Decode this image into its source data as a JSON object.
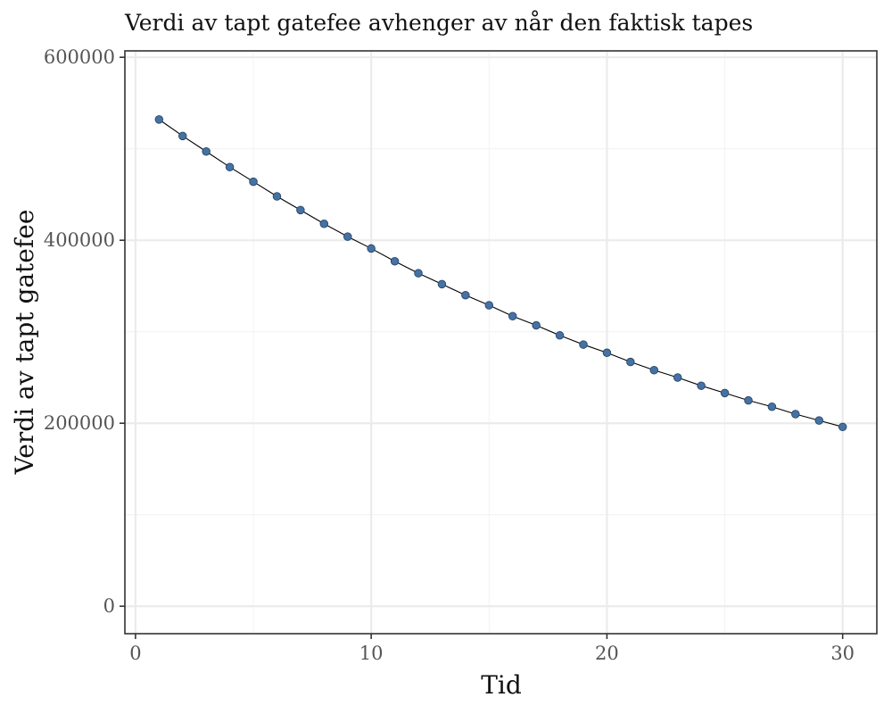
{
  "chart_data": {
    "type": "line",
    "title": "Verdi av tapt gatefee avhenger av når den faktisk tapes",
    "xlabel": "Tid",
    "ylabel": "Verdi av tapt gatefee",
    "xlim": [
      -0.45,
      31.45
    ],
    "ylim": [
      -30000,
      607000
    ],
    "xticks": [
      0,
      10,
      20,
      30
    ],
    "xtick_labels": [
      "0",
      "10",
      "20",
      "30"
    ],
    "xminor": [
      5,
      15,
      25
    ],
    "yticks": [
      0,
      200000,
      400000,
      600000
    ],
    "ytick_labels": [
      "0",
      "200000",
      "400000",
      "600000"
    ],
    "yminor": [
      100000,
      300000,
      500000
    ],
    "grid": true,
    "point_color": "#4671a3",
    "point_edge_color": "#27476b",
    "line_color": "#000000",
    "series": [
      {
        "x": [
          1,
          2,
          3,
          4,
          5,
          6,
          7,
          8,
          9,
          10,
          11,
          12,
          13,
          14,
          15,
          16,
          17,
          18,
          19,
          20,
          21,
          22,
          23,
          24,
          25,
          26,
          27,
          28,
          29,
          30
        ],
        "y": [
          532000,
          514000,
          497000,
          480000,
          464000,
          448000,
          433000,
          418000,
          404000,
          391000,
          377000,
          364000,
          352000,
          340000,
          329000,
          317000,
          307000,
          296000,
          286000,
          277000,
          267000,
          258000,
          250000,
          241000,
          233000,
          225000,
          218000,
          210000,
          203000,
          196000
        ]
      }
    ]
  }
}
